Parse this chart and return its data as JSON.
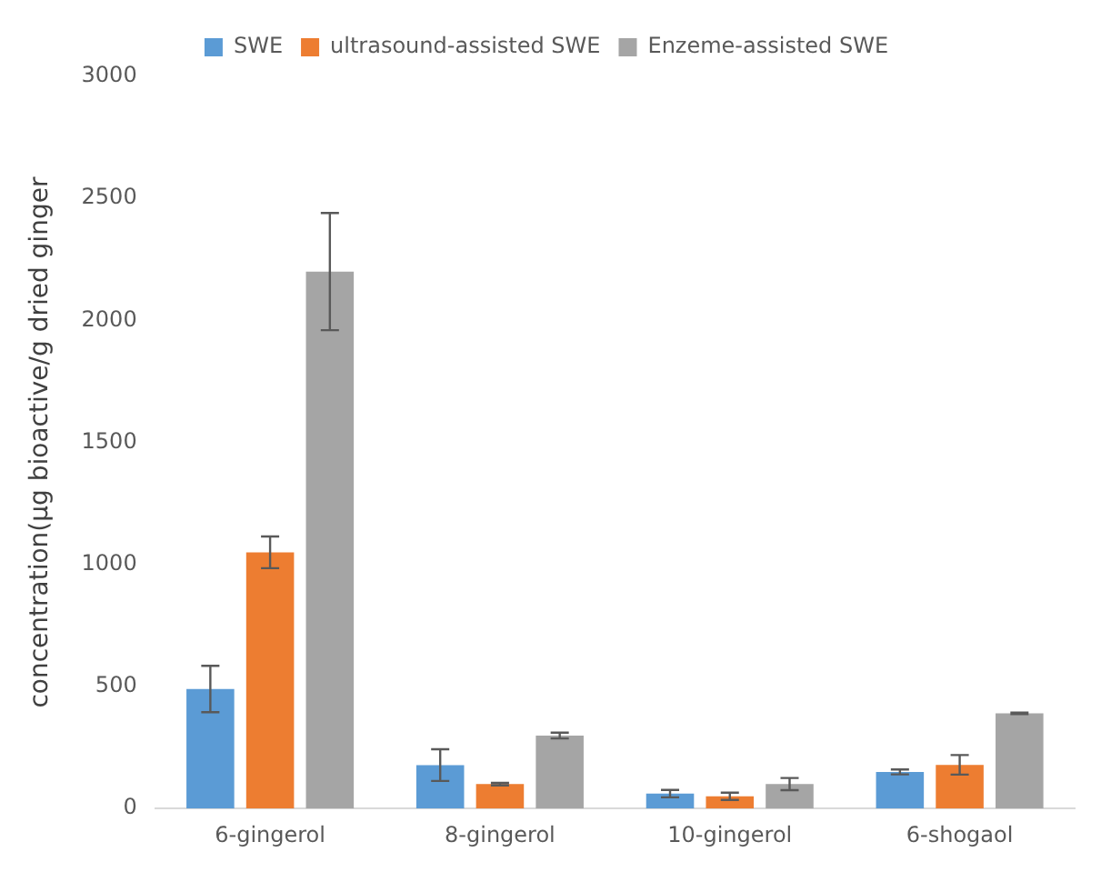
{
  "chart_data": {
    "type": "bar",
    "ylabel": "concentration(µg bioactive/g dried ginger",
    "categories": [
      "6-gingerol",
      "8-gingerol",
      "10-gingerol",
      "6-shogaol"
    ],
    "series": [
      {
        "name": "SWE",
        "color": "#5b9bd5",
        "values": [
          490,
          178,
          61,
          150
        ],
        "errors": [
          95,
          65,
          15,
          10
        ]
      },
      {
        "name": "ultrasound-assisted SWE",
        "color": "#ed7d31",
        "values": [
          1050,
          100,
          50,
          179
        ],
        "errors": [
          65,
          5,
          15,
          40
        ]
      },
      {
        "name": "Enzeme-assisted SWE",
        "color": "#a5a5a5",
        "values": [
          2200,
          299,
          100,
          390
        ],
        "errors": [
          240,
          12,
          25,
          3
        ]
      }
    ],
    "ylim": [
      0,
      3000
    ],
    "yticks": [
      0,
      500,
      1000,
      1500,
      2000,
      2500,
      3000
    ],
    "grid": false,
    "legend": "top"
  }
}
